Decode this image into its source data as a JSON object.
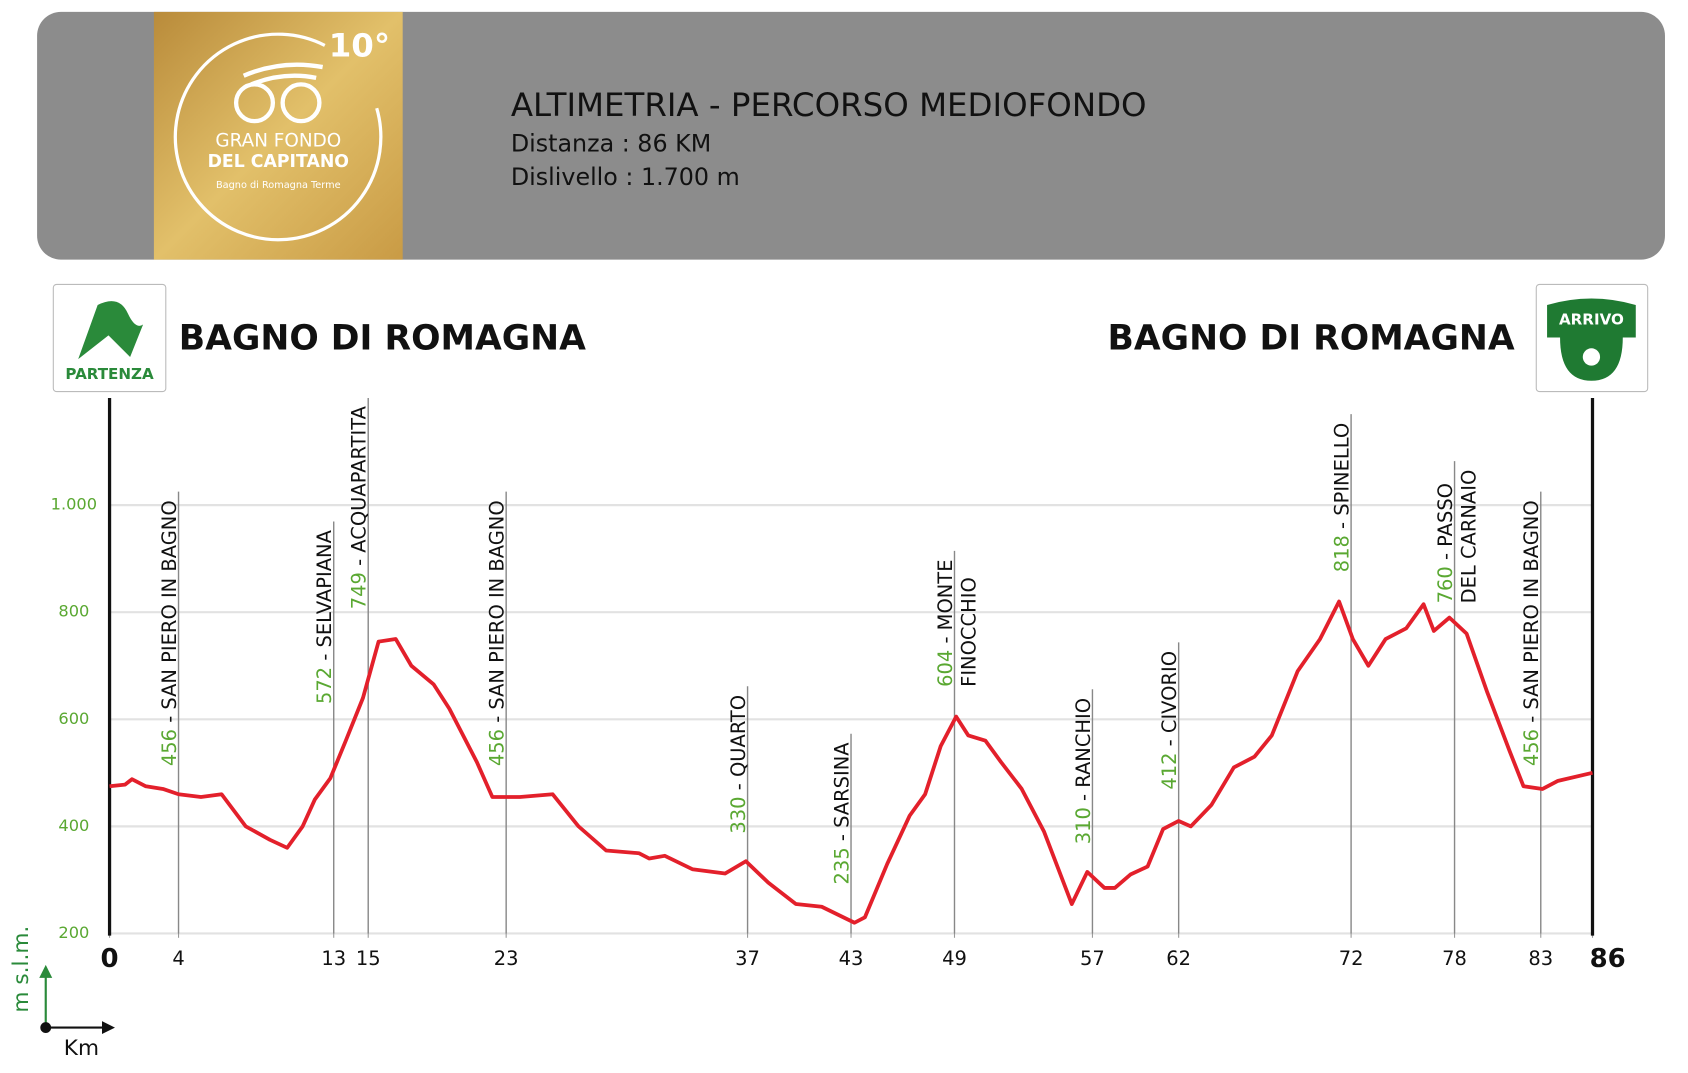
{
  "chart_data": {
    "type": "line",
    "title": "ALTIMETRIA - PERCORSO MEDIOFONDO",
    "subtitle_lines": [
      "Distanza : 86 KM",
      "Dislivello : 1.700 m"
    ],
    "logo": {
      "edition": "10°",
      "line1": "GRAN FONDO",
      "line2": "DEL CAPITANO",
      "line3": "Bagno di Romagna Terme"
    },
    "start": {
      "name": "BAGNO DI ROMAGNA",
      "badge": "PARTENZA"
    },
    "finish": {
      "name": "BAGNO DI ROMAGNA",
      "badge": "ARRIVO"
    },
    "xlabel": "Km",
    "ylabel": "m s.l.m.",
    "color": "#e3202b",
    "x": [
      0,
      0.9,
      1.3,
      2.1,
      3.1,
      4.0,
      5.3,
      6.5,
      7.9,
      9.3,
      10.3,
      11.2,
      11.9,
      12.8,
      13.7,
      14.7,
      15.6,
      16.6,
      17.5,
      18.8,
      19.7,
      21.3,
      22.2,
      23.8,
      25.7,
      27.2,
      28.8,
      30.7,
      31.3,
      32.2,
      33.8,
      35.7,
      36.9,
      38.2,
      39.8,
      41.3,
      43.2,
      43.8,
      45.1,
      46.4,
      47.3,
      48.2,
      49.1,
      49.8,
      50.8,
      51.7,
      52.9,
      54.2,
      55.8,
      56.7,
      57.7,
      58.3,
      59.2,
      60.2,
      61.1,
      62.0,
      62.7,
      63.9,
      65.2,
      66.4,
      67.4,
      68.9,
      70.2,
      71.3,
      72.1,
      73.0,
      74.0,
      75.2,
      76.2,
      76.8,
      77.7,
      78.7,
      79.9,
      81.2,
      82.0,
      83.1,
      84.0,
      86.0
    ],
    "values": [
      475,
      478,
      488,
      475,
      470,
      460,
      455,
      460,
      400,
      375,
      360,
      400,
      450,
      490,
      560,
      640,
      745,
      750,
      700,
      665,
      620,
      520,
      455,
      455,
      460,
      400,
      355,
      350,
      340,
      345,
      320,
      312,
      335,
      295,
      255,
      250,
      220,
      230,
      330,
      420,
      460,
      550,
      605,
      570,
      560,
      520,
      470,
      390,
      255,
      315,
      285,
      285,
      310,
      325,
      395,
      410,
      400,
      440,
      510,
      530,
      570,
      690,
      750,
      820,
      750,
      700,
      750,
      770,
      815,
      765,
      790,
      760,
      650,
      540,
      475,
      470,
      485,
      500
    ],
    "xlim": [
      0,
      86
    ],
    "ylim": [
      200,
      1200
    ],
    "xticks": [
      0,
      4,
      13,
      15,
      23,
      37,
      43,
      49,
      57,
      62,
      72,
      78,
      83,
      86
    ],
    "yticks": [
      200,
      400,
      600,
      800,
      {
        "value": 1000,
        "label": "1.000"
      }
    ],
    "grid": true,
    "separator": " - ",
    "waypoints": [
      {
        "km": 4,
        "elevation": 456,
        "name": [
          "SAN PIERO IN BAGNO"
        ]
      },
      {
        "km": 13,
        "elevation": 572,
        "name": [
          "SELVAPIANA"
        ]
      },
      {
        "km": 15,
        "elevation": 749,
        "name": [
          "ACQUAPARTITA"
        ]
      },
      {
        "km": 23,
        "elevation": 456,
        "name": [
          "SAN PIERO IN BAGNO"
        ]
      },
      {
        "km": 37,
        "elevation": 330,
        "name": [
          "QUARTO"
        ]
      },
      {
        "km": 43,
        "elevation": 235,
        "name": [
          "SARSINA"
        ]
      },
      {
        "km": 49,
        "elevation": 604,
        "name": [
          "MONTE",
          "FINOCCHIO"
        ]
      },
      {
        "km": 57,
        "elevation": 310,
        "name": [
          "RANCHIO"
        ]
      },
      {
        "km": 62,
        "elevation": 412,
        "name": [
          "CIVORIO"
        ]
      },
      {
        "km": 72,
        "elevation": 818,
        "name": [
          "SPINELLO"
        ]
      },
      {
        "km": 78,
        "elevation": 760,
        "name": [
          "PASSO",
          "DEL CARNAIO"
        ]
      },
      {
        "km": 83,
        "elevation": 456,
        "name": [
          "SAN PIERO IN BAGNO"
        ]
      }
    ]
  }
}
